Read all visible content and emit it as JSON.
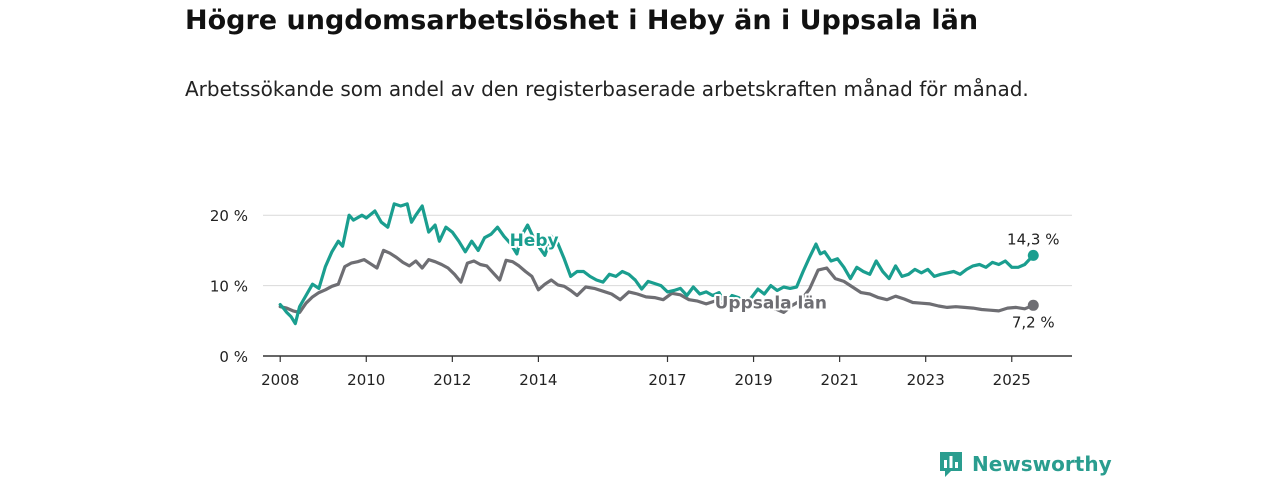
{
  "header": {
    "title": "Högre ungdomsarbetslöshet i Heby än i Uppsala län",
    "subtitle": "Arbetssökande som andel av den registerbaserade arbetskraften månad för månad."
  },
  "brand": {
    "name": "Newsworthy",
    "color": "#2a9d8f"
  },
  "colors": {
    "heby": "#1a9e8f",
    "uppsala": "#6e6e73",
    "grid": "#d9d9d9",
    "axis": "#333333"
  },
  "chart_data": {
    "type": "line",
    "title": "Högre ungdomsarbetslöshet i Heby än i Uppsala län",
    "subtitle": "Arbetssökande som andel av den registerbaserade arbetskraften månad för månad.",
    "xlabel": "",
    "ylabel": "",
    "ylim": [
      0,
      25
    ],
    "xlim": [
      2007.6,
      2026.4
    ],
    "grid": true,
    "x_ticks": [
      {
        "value": 2008,
        "label": "2008"
      },
      {
        "value": 2010,
        "label": "2010"
      },
      {
        "value": 2012,
        "label": "2012"
      },
      {
        "value": 2014,
        "label": "2014"
      },
      {
        "value": 2017,
        "label": "2017"
      },
      {
        "value": 2019,
        "label": "2019"
      },
      {
        "value": 2021,
        "label": "2021"
      },
      {
        "value": 2023,
        "label": "2023"
      },
      {
        "value": 2025,
        "label": "2025"
      }
    ],
    "y_ticks": [
      {
        "value": 0,
        "label": "0 %"
      },
      {
        "value": 10,
        "label": "10 %"
      },
      {
        "value": 20,
        "label": "20 %"
      }
    ],
    "series": [
      {
        "name": "Heby",
        "color": "#1a9e8f",
        "x": [
          2008.0,
          2008.1,
          2008.15,
          2008.25,
          2008.35,
          2008.45,
          2008.6,
          2008.75,
          2008.9,
          2009.05,
          2009.2,
          2009.35,
          2009.45,
          2009.6,
          2009.7,
          2009.9,
          2010.0,
          2010.2,
          2010.35,
          2010.5,
          2010.65,
          2010.8,
          2010.95,
          2011.05,
          2011.15,
          2011.3,
          2011.45,
          2011.6,
          2011.7,
          2011.85,
          2012.0,
          2012.15,
          2012.3,
          2012.45,
          2012.6,
          2012.75,
          2012.9,
          2013.05,
          2013.2,
          2013.35,
          2013.5,
          2013.6,
          2013.75,
          2013.9,
          2014.0,
          2014.15,
          2014.3,
          2014.45,
          2014.6,
          2014.75,
          2014.9,
          2015.05,
          2015.2,
          2015.35,
          2015.5,
          2015.65,
          2015.8,
          2015.95,
          2016.1,
          2016.25,
          2016.4,
          2016.55,
          2016.7,
          2016.85,
          2017.0,
          2017.15,
          2017.3,
          2017.45,
          2017.6,
          2017.75,
          2017.9,
          2018.05,
          2018.2,
          2018.35,
          2018.5,
          2018.65,
          2018.8,
          2018.95,
          2019.1,
          2019.25,
          2019.4,
          2019.55,
          2019.7,
          2019.85,
          2020.0,
          2020.15,
          2020.3,
          2020.45,
          2020.55,
          2020.65,
          2020.8,
          2020.95,
          2021.1,
          2021.25,
          2021.4,
          2021.55,
          2021.7,
          2021.85,
          2022.0,
          2022.15,
          2022.3,
          2022.45,
          2022.6,
          2022.75,
          2022.9,
          2023.05,
          2023.2,
          2023.35,
          2023.5,
          2023.65,
          2023.8,
          2023.95,
          2024.1,
          2024.25,
          2024.4,
          2024.55,
          2024.7,
          2024.85,
          2025.0,
          2025.15,
          2025.3,
          2025.5
        ],
        "values": [
          7.3,
          6.6,
          6.2,
          5.6,
          4.6,
          7.0,
          8.6,
          10.2,
          9.6,
          12.7,
          14.8,
          16.3,
          15.6,
          20.0,
          19.3,
          20.0,
          19.6,
          20.6,
          19.0,
          18.3,
          21.6,
          21.3,
          21.6,
          19.0,
          20.0,
          21.3,
          17.6,
          18.6,
          16.3,
          18.3,
          17.6,
          16.3,
          14.8,
          16.3,
          15.0,
          16.8,
          17.3,
          18.3,
          17.0,
          16.0,
          14.5,
          17.0,
          18.6,
          16.6,
          15.6,
          14.3,
          17.0,
          16.0,
          13.8,
          11.3,
          12.0,
          12.0,
          11.3,
          10.8,
          10.5,
          11.6,
          11.3,
          12.0,
          11.6,
          10.8,
          9.5,
          10.6,
          10.3,
          10.0,
          9.1,
          9.3,
          9.6,
          8.6,
          9.8,
          8.8,
          9.1,
          8.6,
          9.0,
          7.3,
          8.6,
          8.3,
          7.5,
          8.3,
          9.5,
          8.8,
          10.0,
          9.3,
          9.8,
          9.6,
          9.8,
          12.0,
          14.0,
          15.9,
          14.5,
          14.8,
          13.5,
          13.8,
          12.6,
          11.0,
          12.6,
          12.0,
          11.6,
          13.5,
          12.0,
          11.0,
          12.8,
          11.3,
          11.6,
          12.3,
          11.8,
          12.3,
          11.3,
          11.6,
          11.8,
          12.0,
          11.6,
          12.3,
          12.8,
          13.0,
          12.6,
          13.3,
          13.0,
          13.5,
          12.6,
          12.6,
          13.0,
          14.3
        ]
      },
      {
        "name": "Uppsala län",
        "color": "#6e6e73",
        "x": [
          2008.0,
          2008.15,
          2008.3,
          2008.45,
          2008.6,
          2008.75,
          2008.9,
          2009.05,
          2009.2,
          2009.35,
          2009.5,
          2009.65,
          2009.8,
          2009.95,
          2010.1,
          2010.25,
          2010.4,
          2010.55,
          2010.7,
          2010.85,
          2011.0,
          2011.15,
          2011.3,
          2011.45,
          2011.6,
          2011.75,
          2011.9,
          2012.05,
          2012.2,
          2012.35,
          2012.5,
          2012.65,
          2012.8,
          2012.95,
          2013.1,
          2013.25,
          2013.4,
          2013.55,
          2013.7,
          2013.85,
          2014.0,
          2014.15,
          2014.3,
          2014.45,
          2014.6,
          2014.75,
          2014.9,
          2015.1,
          2015.3,
          2015.5,
          2015.7,
          2015.9,
          2016.1,
          2016.3,
          2016.5,
          2016.7,
          2016.9,
          2017.1,
          2017.3,
          2017.5,
          2017.7,
          2017.9,
          2018.1,
          2018.3,
          2018.5,
          2018.7,
          2018.9,
          2019.1,
          2019.3,
          2019.5,
          2019.7,
          2019.9,
          2020.1,
          2020.3,
          2020.5,
          2020.7,
          2020.9,
          2021.1,
          2021.3,
          2021.5,
          2021.7,
          2021.9,
          2022.1,
          2022.3,
          2022.5,
          2022.7,
          2022.9,
          2023.1,
          2023.3,
          2023.5,
          2023.7,
          2023.9,
          2024.1,
          2024.3,
          2024.5,
          2024.7,
          2024.9,
          2025.1,
          2025.3,
          2025.5
        ],
        "values": [
          7.0,
          6.8,
          6.4,
          6.2,
          7.5,
          8.4,
          9.0,
          9.4,
          9.9,
          10.2,
          12.7,
          13.2,
          13.4,
          13.7,
          13.1,
          12.5,
          15.0,
          14.6,
          14.0,
          13.3,
          12.8,
          13.5,
          12.5,
          13.7,
          13.4,
          13.0,
          12.5,
          11.6,
          10.5,
          13.2,
          13.5,
          13.0,
          12.8,
          11.8,
          10.8,
          13.6,
          13.4,
          12.8,
          12.0,
          11.3,
          9.4,
          10.2,
          10.8,
          10.1,
          9.9,
          9.3,
          8.6,
          9.8,
          9.6,
          9.2,
          8.8,
          8.0,
          9.1,
          8.8,
          8.4,
          8.3,
          8.0,
          8.9,
          8.7,
          8.0,
          7.8,
          7.4,
          7.8,
          7.3,
          7.0,
          7.1,
          6.9,
          7.3,
          7.0,
          6.7,
          6.2,
          7.2,
          7.9,
          9.5,
          12.2,
          12.5,
          11.0,
          10.6,
          9.8,
          9.0,
          8.8,
          8.3,
          8.0,
          8.5,
          8.1,
          7.6,
          7.5,
          7.4,
          7.1,
          6.9,
          7.0,
          6.9,
          6.8,
          6.6,
          6.5,
          6.4,
          6.8,
          6.9,
          6.7,
          7.2
        ]
      }
    ],
    "annotations": [
      {
        "series": "Heby",
        "text": "Heby",
        "x": 2013.9,
        "y": 16.5
      },
      {
        "series": "Uppsala län",
        "text": "Uppsala län",
        "x": 2019.4,
        "y": 7.6
      },
      {
        "series": "Heby",
        "text": "14,3 %",
        "x": 2025.5,
        "y": 14.3
      },
      {
        "series": "Uppsala län",
        "text": "7,2 %",
        "x": 2025.5,
        "y": 7.2
      }
    ]
  }
}
